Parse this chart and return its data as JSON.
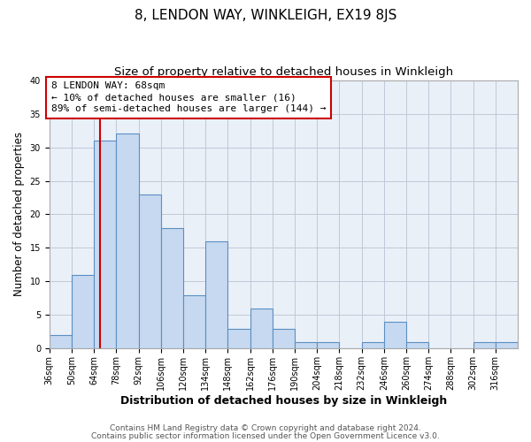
{
  "title": "8, LENDON WAY, WINKLEIGH, EX19 8JS",
  "subtitle": "Size of property relative to detached houses in Winkleigh",
  "xlabel": "Distribution of detached houses by size in Winkleigh",
  "ylabel": "Number of detached properties",
  "bin_edges": [
    36,
    50,
    64,
    78,
    92,
    106,
    120,
    134,
    148,
    162,
    176,
    190,
    204,
    218,
    232,
    246,
    260,
    274,
    288,
    302,
    316,
    330
  ],
  "counts": [
    2,
    11,
    31,
    32,
    23,
    18,
    8,
    16,
    3,
    6,
    3,
    1,
    1,
    0,
    1,
    4,
    1,
    0,
    0,
    1,
    1
  ],
  "tick_labels": [
    "36sqm",
    "50sqm",
    "64sqm",
    "78sqm",
    "92sqm",
    "106sqm",
    "120sqm",
    "134sqm",
    "148sqm",
    "162sqm",
    "176sqm",
    "190sqm",
    "204sqm",
    "218sqm",
    "232sqm",
    "246sqm",
    "260sqm",
    "274sqm",
    "288sqm",
    "302sqm",
    "316sqm"
  ],
  "bar_fill_color": "#c6d9f0",
  "bar_edge_color": "#5a8fc3",
  "vline_x": 68,
  "vline_color": "#cc0000",
  "annotation_line1": "8 LENDON WAY: 68sqm",
  "annotation_line2": "← 10% of detached houses are smaller (16)",
  "annotation_line3": "89% of semi-detached houses are larger (144) →",
  "annotation_box_edge_color": "#cc0000",
  "annotation_box_face_color": "white",
  "ylim": [
    0,
    40
  ],
  "yticks": [
    0,
    5,
    10,
    15,
    20,
    25,
    30,
    35,
    40
  ],
  "grid_color": "#c0c8d8",
  "background_color": "#eaf0f8",
  "footer_line1": "Contains HM Land Registry data © Crown copyright and database right 2024.",
  "footer_line2": "Contains public sector information licensed under the Open Government Licence v3.0.",
  "title_fontsize": 11,
  "subtitle_fontsize": 9.5,
  "xlabel_fontsize": 9,
  "ylabel_fontsize": 8.5,
  "tick_fontsize": 7,
  "annotation_fontsize": 8,
  "footer_fontsize": 6.5
}
